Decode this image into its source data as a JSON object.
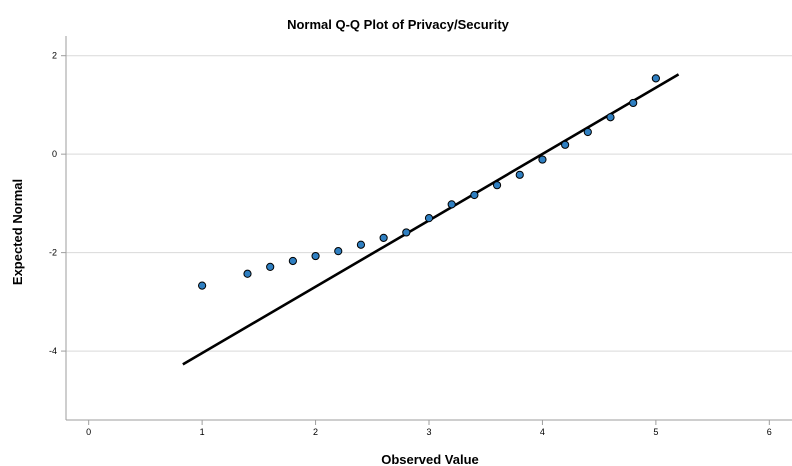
{
  "chart_data": {
    "type": "scatter",
    "title": "Normal Q-Q Plot of Privacy/Security",
    "xlabel": "Observed Value",
    "ylabel": "Expected Normal",
    "xlim": [
      -0.2,
      6.2
    ],
    "ylim": [
      -5.4,
      2.4
    ],
    "xticks": [
      0,
      1,
      2,
      3,
      4,
      5,
      6
    ],
    "yticks": [
      2,
      0,
      -2,
      -4
    ],
    "grid": "horizontal",
    "point_color": "#2f7fc1",
    "series": [
      {
        "type": "scatter",
        "x": [
          1.0,
          1.4,
          1.6,
          1.8,
          2.0,
          2.2,
          2.4,
          2.6,
          2.8,
          3.0,
          3.2,
          3.4,
          3.6,
          3.8,
          4.0,
          4.2,
          4.4,
          4.6,
          4.8,
          5.0
        ],
        "y": [
          -2.67,
          -2.43,
          -2.29,
          -2.17,
          -2.07,
          -1.97,
          -1.84,
          -1.7,
          -1.59,
          -1.3,
          -1.02,
          -0.83,
          -0.63,
          -0.42,
          -0.11,
          0.19,
          0.45,
          0.75,
          1.04,
          1.54
        ]
      },
      {
        "type": "line",
        "x": [
          0.83,
          5.2
        ],
        "y": [
          -4.27,
          1.62
        ]
      }
    ]
  }
}
